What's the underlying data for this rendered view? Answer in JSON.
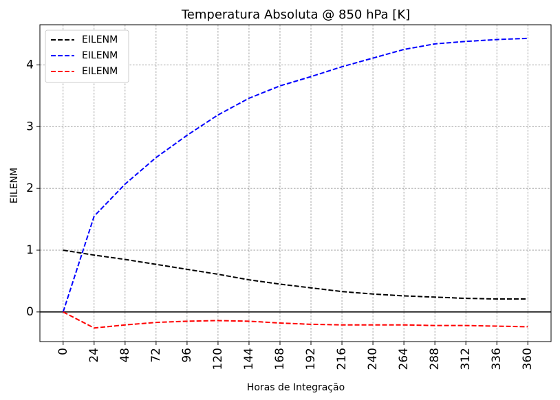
{
  "chart_data": {
    "type": "line",
    "title": "Temperatura Absoluta @ 850 hPa [K]",
    "xlabel": "Horas de Integração",
    "ylabel": "EILENM",
    "x": [
      0,
      24,
      48,
      72,
      96,
      120,
      144,
      168,
      192,
      216,
      240,
      264,
      288,
      312,
      336,
      360
    ],
    "xlim": [
      -18,
      378
    ],
    "ylim": [
      -0.48,
      4.65
    ],
    "yticks": [
      0,
      1,
      2,
      3,
      4
    ],
    "grid": true,
    "legend_position": "top-left",
    "zero_line": true,
    "series": [
      {
        "name": "EILENM",
        "color": "#000000",
        "style": "dashed",
        "values": [
          1.0,
          0.92,
          0.85,
          0.77,
          0.69,
          0.61,
          0.52,
          0.45,
          0.39,
          0.33,
          0.29,
          0.26,
          0.24,
          0.22,
          0.21,
          0.21
        ]
      },
      {
        "name": "EILENM",
        "color": "#0000ff",
        "style": "dashed",
        "values": [
          0.0,
          1.55,
          2.07,
          2.5,
          2.86,
          3.19,
          3.46,
          3.66,
          3.81,
          3.97,
          4.11,
          4.25,
          4.34,
          4.38,
          4.41,
          4.43
        ]
      },
      {
        "name": "EILENM",
        "color": "#ff0000",
        "style": "dashed",
        "values": [
          0.0,
          -0.26,
          -0.21,
          -0.17,
          -0.15,
          -0.14,
          -0.15,
          -0.18,
          -0.2,
          -0.21,
          -0.21,
          -0.21,
          -0.22,
          -0.22,
          -0.23,
          -0.24
        ]
      }
    ]
  }
}
